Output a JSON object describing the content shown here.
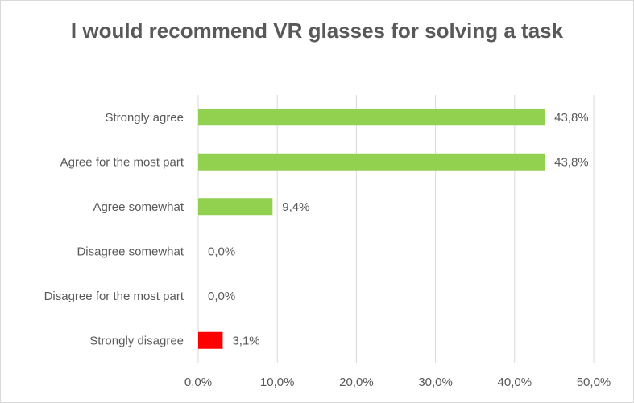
{
  "chart_data": {
    "type": "bar",
    "orientation": "horizontal",
    "title": "I would recommend VR glasses for solving a task",
    "categories": [
      "Strongly agree",
      "Agree for the most part",
      "Agree somewhat",
      "Disagree somewhat",
      "Disagree for the most part",
      "Strongly disagree"
    ],
    "values": [
      43.8,
      43.8,
      9.4,
      0.0,
      0.0,
      3.1
    ],
    "value_labels": [
      "43,8%",
      "43,8%",
      "9,4%",
      "0,0%",
      "0,0%",
      "3,1%"
    ],
    "bar_colors": [
      "#92d050",
      "#92d050",
      "#92d050",
      "#92d050",
      "#92d050",
      "#ff0000"
    ],
    "xlim": [
      0,
      50
    ],
    "xticks": [
      0,
      10,
      20,
      30,
      40,
      50
    ],
    "xtick_labels": [
      "0,0%",
      "10,0%",
      "20,0%",
      "30,0%",
      "40,0%",
      "50,0%"
    ],
    "gridlines": true,
    "xlabel": "",
    "ylabel": "",
    "legend": "none"
  },
  "colors": {
    "gridline": "#d9d9d9",
    "text": "#595959"
  }
}
